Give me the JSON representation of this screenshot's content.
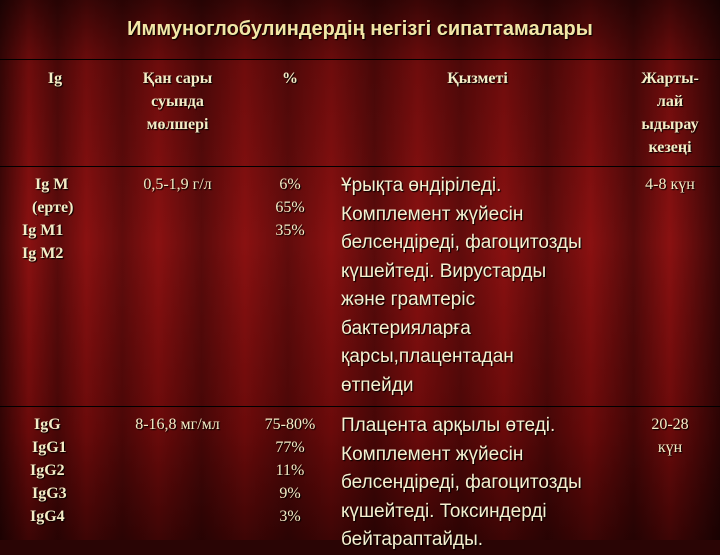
{
  "title": "Иммуноглобулиндердің негізгі сипаттамалары",
  "headers": {
    "ig": "Ig",
    "blood": [
      "Қан сары",
      "суында",
      "мөлшері"
    ],
    "percent": "%",
    "function": "Қызметі",
    "halflife": [
      "Жарты-",
      "лай",
      "ыдырау",
      "кезеңі"
    ]
  },
  "rows": [
    {
      "ig": [
        "Ig M",
        "(ерте)",
        "Ig M1",
        "Ig M2"
      ],
      "blood": "0,5-1,9 г/л",
      "percent": [
        "6%",
        "65%",
        "35%"
      ],
      "function": [
        "Ұрықта өндіріледі.",
        "Комплемент жүйесін",
        "белсендіреді, фагоцитозды",
        "күшейтеді. Вирустарды",
        "және грамтеріс",
        "бактерияларға",
        "қарсы,плацентадан",
        "өтпейди"
      ],
      "halflife": [
        "4-8 күн"
      ]
    },
    {
      "ig": [
        "IgG",
        "IgG1",
        "IgG2",
        "IgG3",
        "IgG4"
      ],
      "blood": "8-16,8 мг/мл",
      "percent": [
        "75-80%",
        "77%",
        "11%",
        "9%",
        "3%"
      ],
      "function": [
        "Плацента арқылы өтеді.",
        "Комплемент жүйесін",
        "белсендіреді, фагоцитозды",
        "күшейтеді. Токсиндерді",
        "бейтараптайды."
      ],
      "halflife": [
        "20-28",
        "күн"
      ]
    }
  ]
}
